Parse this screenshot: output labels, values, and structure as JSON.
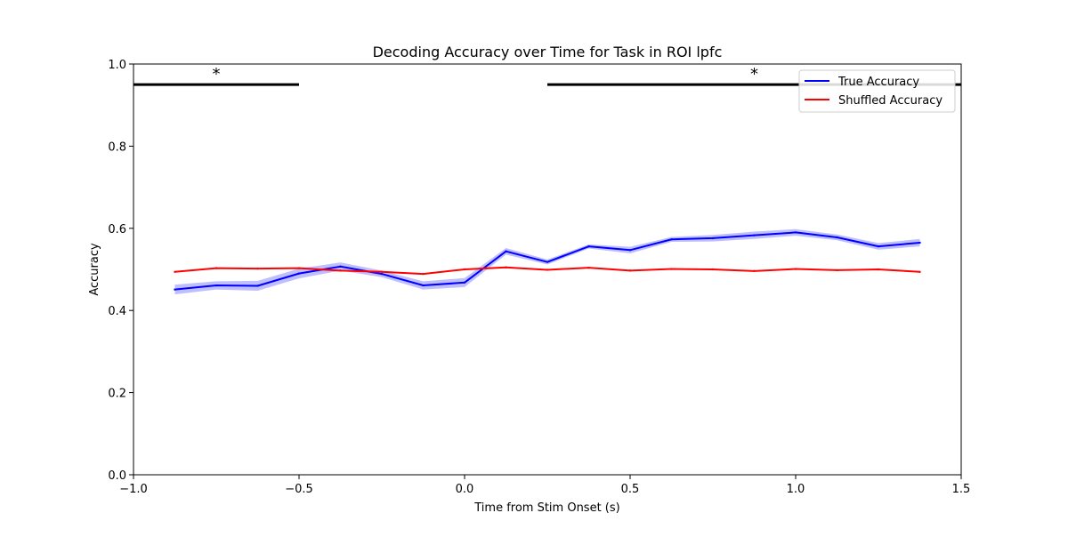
{
  "chart_data": {
    "type": "line",
    "title": "Decoding Accuracy over Time for Task in ROI lpfc",
    "xlabel": "Time from Stim Onset (s)",
    "ylabel": "Accuracy",
    "xlim": [
      -1.0,
      1.5
    ],
    "ylim": [
      0.0,
      1.0
    ],
    "xticks": [
      -1.0,
      -0.5,
      0.0,
      0.5,
      1.0,
      1.5
    ],
    "xtick_labels": [
      "−1.0",
      "−0.5",
      "0.0",
      "0.5",
      "1.0",
      "1.5"
    ],
    "yticks": [
      0.0,
      0.2,
      0.4,
      0.6,
      0.8,
      1.0
    ],
    "ytick_labels": [
      "0.0",
      "0.2",
      "0.4",
      "0.6",
      "0.8",
      "1.0"
    ],
    "grid": false,
    "legend_position": "top-right",
    "x": [
      -0.875,
      -0.75,
      -0.625,
      -0.5,
      -0.375,
      -0.25,
      -0.125,
      0.0,
      0.125,
      0.25,
      0.375,
      0.5,
      0.625,
      0.75,
      0.875,
      1.0,
      1.125,
      1.25,
      1.375
    ],
    "series": [
      {
        "name": "True Accuracy",
        "color": "#0000ff",
        "values": [
          0.451,
          0.461,
          0.46,
          0.49,
          0.507,
          0.489,
          0.461,
          0.468,
          0.544,
          0.518,
          0.556,
          0.547,
          0.573,
          0.576,
          0.583,
          0.59,
          0.578,
          0.556,
          0.565
        ],
        "band_halfwidth": [
          0.012,
          0.01,
          0.012,
          0.012,
          0.01,
          0.008,
          0.01,
          0.011,
          0.008,
          0.006,
          0.005,
          0.008,
          0.006,
          0.008,
          0.009,
          0.008,
          0.007,
          0.008,
          0.009
        ],
        "band_color": "#8a8aff"
      },
      {
        "name": "Shuffled Accuracy",
        "color": "#ff0000",
        "values": [
          0.494,
          0.503,
          0.502,
          0.503,
          0.497,
          0.494,
          0.489,
          0.5,
          0.505,
          0.499,
          0.504,
          0.497,
          0.501,
          0.5,
          0.496,
          0.501,
          0.498,
          0.5,
          0.494
        ]
      }
    ],
    "significance": [
      {
        "x_start": -1.0,
        "x_end": -0.5,
        "y": 0.95,
        "label": "*"
      },
      {
        "x_start": 0.25,
        "x_end": 1.5,
        "y": 0.95,
        "label": "*"
      }
    ]
  }
}
